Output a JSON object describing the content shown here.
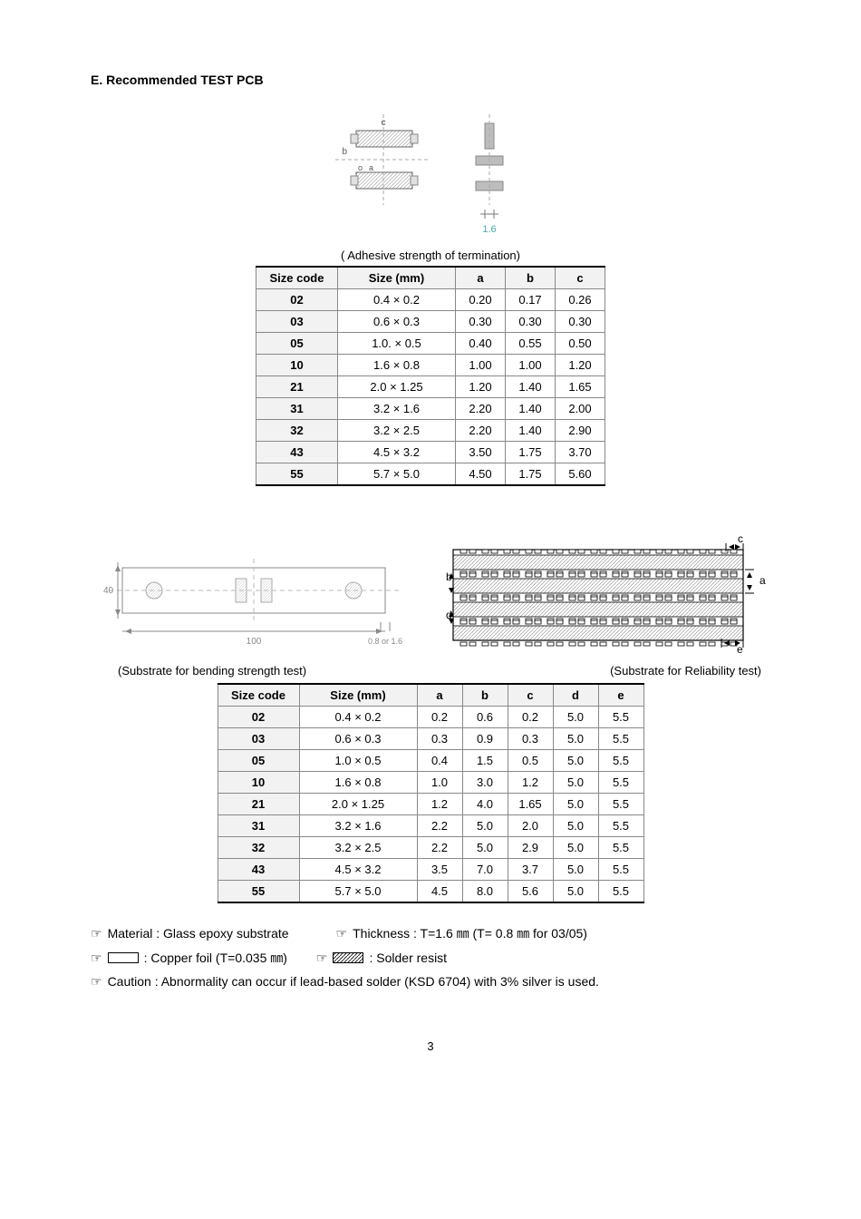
{
  "section_title": "E. Recommended TEST PCB",
  "table1": {
    "caption": "( Adhesive strength of termination)",
    "columns": [
      "Size code",
      "Size (mm)",
      "a",
      "b",
      "c"
    ],
    "rows": [
      [
        "02",
        "0.4 × 0.2",
        "0.20",
        "0.17",
        "0.26"
      ],
      [
        "03",
        "0.6 × 0.3",
        "0.30",
        "0.30",
        "0.30"
      ],
      [
        "05",
        "1.0. × 0.5",
        "0.40",
        "0.55",
        "0.50"
      ],
      [
        "10",
        "1.6 × 0.8",
        "1.00",
        "1.00",
        "1.20"
      ],
      [
        "21",
        "2.0 × 1.25",
        "1.20",
        "1.40",
        "1.65"
      ],
      [
        "31",
        "3.2 × 1.6",
        "2.20",
        "1.40",
        "2.00"
      ],
      [
        "32",
        "3.2 × 2.5",
        "2.20",
        "1.40",
        "2.90"
      ],
      [
        "43",
        "4.5 × 3.2",
        "3.50",
        "1.75",
        "3.70"
      ],
      [
        "55",
        "5.7 × 5.0",
        "4.50",
        "1.75",
        "5.60"
      ]
    ],
    "col_widths": {
      "code": 90,
      "size": 130,
      "a": 55,
      "b": 55,
      "c": 55
    }
  },
  "subcap_left": "(Substrate for bending strength test)",
  "subcap_right": "(Substrate for Reliability test)",
  "table2": {
    "columns": [
      "Size code",
      "Size (mm)",
      "a",
      "b",
      "c",
      "d",
      "e"
    ],
    "rows": [
      [
        "02",
        "0.4 × 0.2",
        "0.2",
        "0.6",
        "0.2",
        "5.0",
        "5.5"
      ],
      [
        "03",
        "0.6 × 0.3",
        "0.3",
        "0.9",
        "0.3",
        "5.0",
        "5.5"
      ],
      [
        "05",
        "1.0 × 0.5",
        "0.4",
        "1.5",
        "0.5",
        "5.0",
        "5.5"
      ],
      [
        "10",
        "1.6 × 0.8",
        "1.0",
        "3.0",
        "1.2",
        "5.0",
        "5.5"
      ],
      [
        "21",
        "2.0 × 1.25",
        "1.2",
        "4.0",
        "1.65",
        "5.0",
        "5.5"
      ],
      [
        "31",
        "3.2 × 1.6",
        "2.2",
        "5.0",
        "2.0",
        "5.0",
        "5.5"
      ],
      [
        "32",
        "3.2 × 2.5",
        "2.2",
        "5.0",
        "2.9",
        "5.0",
        "5.5"
      ],
      [
        "43",
        "4.5 × 3.2",
        "3.5",
        "7.0",
        "3.7",
        "5.0",
        "5.5"
      ],
      [
        "55",
        "5.7 × 5.0",
        "4.5",
        "8.0",
        "5.6",
        "5.0",
        "5.5"
      ]
    ],
    "col_widths": {
      "code": 90,
      "size": 130,
      "val": 50
    }
  },
  "notes": {
    "material": "Material : Glass epoxy substrate",
    "thickness": "Thickness : T=1.6 ㎜ (T= 0.8 ㎜ for 03/05)",
    "copper": ": Copper foil (T=0.035 ㎜)",
    "solder": ": Solder resist",
    "caution": "Caution : Abnormality can occur if lead-based solder (KSD 6704) with 3% silver is used."
  },
  "pointer": "☞",
  "page_number": "3",
  "diagram1": {
    "pad_hatch": "#bfbfbf",
    "pad_fill": "#e8e8e8",
    "side_fill": "#bdbdbd",
    "line": "#888",
    "dim_num": "1.6",
    "labels": {
      "a": "a",
      "b": "b",
      "c": "c",
      "bullet": "o"
    }
  },
  "diagram2": {
    "dim_left": "40",
    "dim_bottom": "100",
    "dim_right": "0.8 or 1.6",
    "line": "#888"
  },
  "diagram3": {
    "labels": {
      "a": "a",
      "b": "b",
      "c": "c",
      "d": "d",
      "e": "e"
    },
    "line": "#000"
  }
}
